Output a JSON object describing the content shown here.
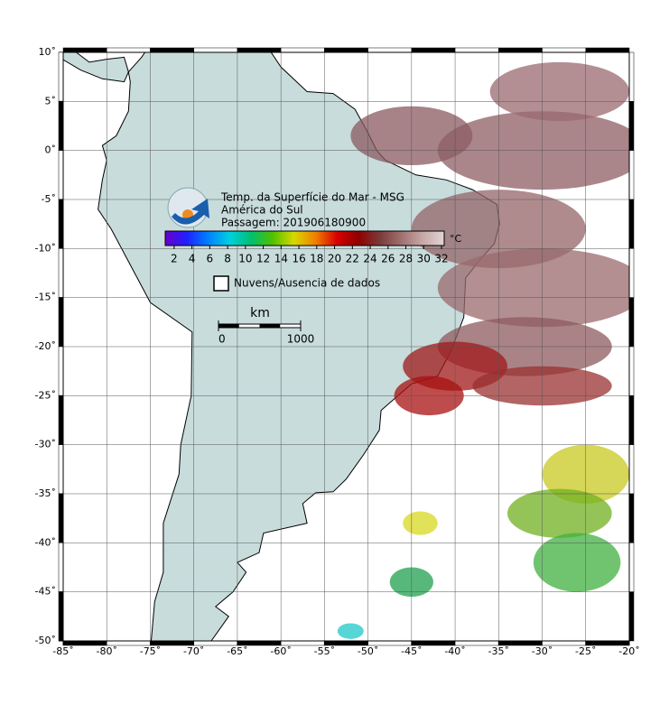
{
  "header": {
    "title": "Temp. da Superfície do Mar - MSG",
    "region": "América do Sul",
    "pass": "Passagem: 201906180900"
  },
  "colorbar": {
    "unit": "°C",
    "lim": [
      1,
      32.3
    ],
    "ticks": [
      2,
      4,
      6,
      8,
      10,
      12,
      14,
      16,
      18,
      20,
      22,
      24,
      26,
      28,
      30,
      32
    ],
    "colors": [
      "#6a00c8",
      "#2020ff",
      "#0080ff",
      "#00d0e0",
      "#00c070",
      "#50c000",
      "#d8d800",
      "#f08000",
      "#d80000",
      "#900000",
      "#7a3a3a",
      "#a07070",
      "#c8a8a8",
      "#e2d4d4"
    ]
  },
  "legend": {
    "clouds": "Nuvens/Ausencia de dados"
  },
  "scale": {
    "unit": "km",
    "ticks": [
      0,
      1000
    ]
  },
  "map": {
    "xlim": [
      -85,
      -20
    ],
    "ylim": [
      -50,
      10
    ],
    "grid": true,
    "xticks": [
      {
        "value": -85,
        "label": "-85˚"
      },
      {
        "value": -80,
        "label": "-80˚"
      },
      {
        "value": -75,
        "label": "-75˚"
      },
      {
        "value": -70,
        "label": "-70˚"
      },
      {
        "value": -65,
        "label": "-65˚"
      },
      {
        "value": -60,
        "label": "-60˚"
      },
      {
        "value": -55,
        "label": "-55˚"
      },
      {
        "value": -50,
        "label": "-50˚"
      },
      {
        "value": -45,
        "label": "-45˚"
      },
      {
        "value": -40,
        "label": "-40˚"
      },
      {
        "value": -35,
        "label": "-35˚"
      },
      {
        "value": -30,
        "label": "-30˚"
      },
      {
        "value": -25,
        "label": "-25˚"
      },
      {
        "value": -20,
        "label": "-20˚"
      }
    ],
    "yticks": [
      {
        "value": 10,
        "label": "10˚"
      },
      {
        "value": 5,
        "label": "5˚"
      },
      {
        "value": 0,
        "label": "0˚"
      },
      {
        "value": -5,
        "label": "-5˚"
      },
      {
        "value": -10,
        "label": "-10˚"
      },
      {
        "value": -15,
        "label": "-15˚"
      },
      {
        "value": -20,
        "label": "-20˚"
      },
      {
        "value": -25,
        "label": "-25˚"
      },
      {
        "value": -30,
        "label": "-30˚"
      },
      {
        "value": -35,
        "label": "-35˚"
      },
      {
        "value": -40,
        "label": "-40˚"
      },
      {
        "value": -45,
        "label": "-45˚"
      },
      {
        "value": -50,
        "label": "-50˚"
      }
    ]
  }
}
